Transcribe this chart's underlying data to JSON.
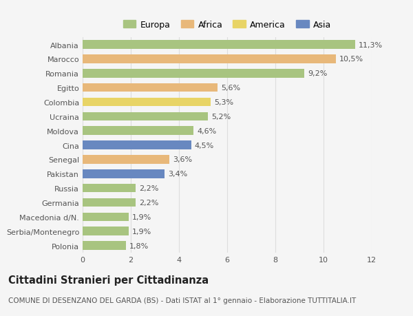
{
  "categories": [
    "Albania",
    "Marocco",
    "Romania",
    "Egitto",
    "Colombia",
    "Ucraina",
    "Moldova",
    "Cina",
    "Senegal",
    "Pakistan",
    "Russia",
    "Germania",
    "Macedonia d/N.",
    "Serbia/Montenegro",
    "Polonia"
  ],
  "values": [
    11.3,
    10.5,
    9.2,
    5.6,
    5.3,
    5.2,
    4.6,
    4.5,
    3.6,
    3.4,
    2.2,
    2.2,
    1.9,
    1.9,
    1.8
  ],
  "labels": [
    "11,3%",
    "10,5%",
    "9,2%",
    "5,6%",
    "5,3%",
    "5,2%",
    "4,6%",
    "4,5%",
    "3,6%",
    "3,4%",
    "2,2%",
    "2,2%",
    "1,9%",
    "1,9%",
    "1,8%"
  ],
  "continents": [
    "Europa",
    "Africa",
    "Europa",
    "Africa",
    "America",
    "Europa",
    "Europa",
    "Asia",
    "Africa",
    "Asia",
    "Europa",
    "Europa",
    "Europa",
    "Europa",
    "Europa"
  ],
  "colors": {
    "Europa": "#a8c480",
    "Africa": "#e8b87a",
    "America": "#e8d466",
    "Asia": "#6888c0"
  },
  "xlim": [
    0,
    12
  ],
  "xticks": [
    0,
    2,
    4,
    6,
    8,
    10,
    12
  ],
  "title": "Cittadini Stranieri per Cittadinanza",
  "subtitle": "COMUNE DI DESENZANO DEL GARDA (BS) - Dati ISTAT al 1° gennaio - Elaborazione TUTTITALIA.IT",
  "background_color": "#f5f5f5",
  "grid_color": "#dddddd",
  "bar_height": 0.6,
  "label_fontsize": 8,
  "tick_fontsize": 8,
  "title_fontsize": 10.5,
  "subtitle_fontsize": 7.5
}
